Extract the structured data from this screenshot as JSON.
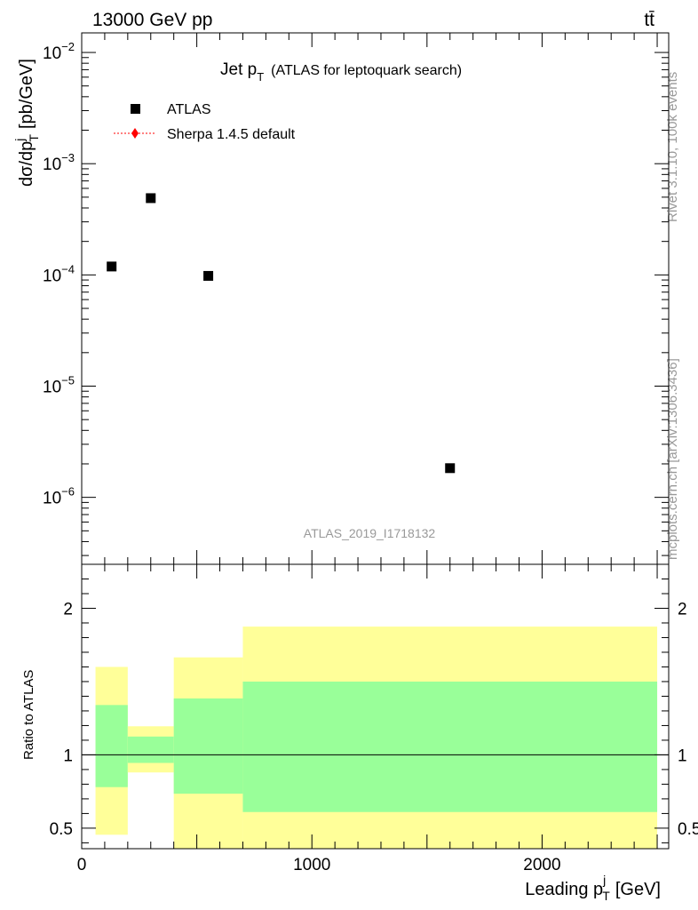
{
  "header": {
    "energy_label": "13000 GeV pp",
    "process_label": "tt̄"
  },
  "side_labels": {
    "rivet": "Rivet 3.1.10,  100k events",
    "mcplots": "mcplots.cern.ch [arXiv:1306.3436]"
  },
  "chart_data": [
    {
      "type": "scatter",
      "panel": "main",
      "title": "Jet p",
      "title_sub": "T",
      "title_suffix": "(ATLAS for leptoquark search)",
      "ylabel": "dσ/dp",
      "ylabel_sup": "j",
      "ylabel_sub": "T",
      "ylabel_unit": "[pb/GeV]",
      "yscale": "log",
      "ylim": [
        2.5e-07,
        0.015
      ],
      "xlim": [
        0,
        2550
      ],
      "ytick_labels": [
        {
          "value": 0.01,
          "base": "10",
          "exp": "−2"
        },
        {
          "value": 0.001,
          "base": "10",
          "exp": "−3"
        },
        {
          "value": 0.0001,
          "base": "10",
          "exp": "−4"
        },
        {
          "value": 1e-05,
          "base": "10",
          "exp": "−5"
        },
        {
          "value": 1e-06,
          "base": "10",
          "exp": "−6"
        }
      ],
      "series": [
        {
          "name": "ATLAS",
          "marker": "square",
          "color": "#000000",
          "points": [
            {
              "x": 130,
              "y": 0.000119
            },
            {
              "x": 300,
              "y": 0.00049
            },
            {
              "x": 550,
              "y": 9.8e-05
            },
            {
              "x": 1600,
              "y": 1.83e-06
            }
          ]
        },
        {
          "name": "Sherpa 1.4.5 default",
          "marker": "diamond",
          "color": "#ff0000",
          "points": []
        }
      ],
      "legend": [
        {
          "label": "ATLAS"
        },
        {
          "label": "Sherpa 1.4.5 default"
        }
      ],
      "watermark": "ATLAS_2019_I1718132"
    },
    {
      "type": "band",
      "panel": "ratio",
      "ylabel": "Ratio to ATLAS",
      "xlabel": "Leading p",
      "xlabel_sup": "j",
      "xlabel_sub": "T",
      "xlabel_unit": "[GeV]",
      "ylim": [
        0.36,
        2.3
      ],
      "xlim": [
        0,
        2550
      ],
      "xtick_labels": [
        {
          "value": 0,
          "label": "0"
        },
        {
          "value": 1000,
          "label": "1000"
        },
        {
          "value": 2000,
          "label": "2000"
        }
      ],
      "ytick_labels": [
        {
          "value": 0.5,
          "label": "0.5"
        },
        {
          "value": 1,
          "label": "1"
        },
        {
          "value": 2,
          "label": "2"
        }
      ],
      "colors": {
        "stat": "#99ff99",
        "total": "#ffff99"
      },
      "bins": [
        {
          "xlow": 60,
          "xhigh": 200,
          "total_low": 0.455,
          "total_high": 1.6,
          "stat_low": 0.78,
          "stat_high": 1.34
        },
        {
          "xlow": 200,
          "xhigh": 400,
          "total_low": 0.88,
          "total_high": 1.195,
          "stat_low": 0.945,
          "stat_high": 1.125
        },
        {
          "xlow": 400,
          "xhigh": 700,
          "total_low": 0.36,
          "total_high": 1.665,
          "stat_low": 0.735,
          "stat_high": 1.385
        },
        {
          "xlow": 700,
          "xhigh": 2500,
          "total_low": 0.36,
          "total_high": 1.875,
          "stat_low": 0.61,
          "stat_high": 1.5
        }
      ],
      "reference_line": 1
    }
  ]
}
